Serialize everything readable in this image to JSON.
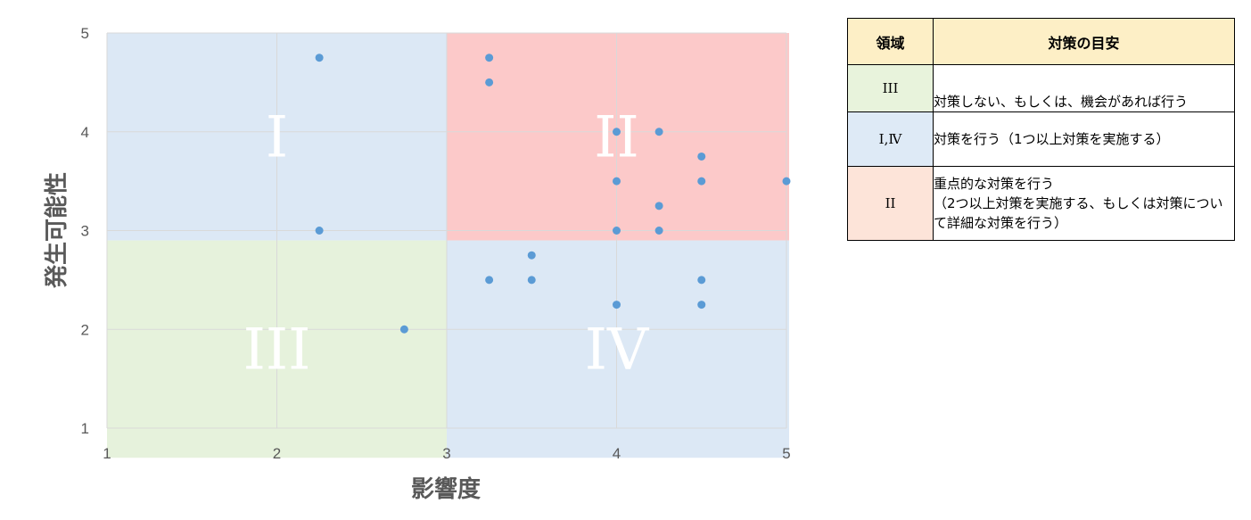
{
  "chart_data": {
    "type": "scatter",
    "xlabel": "影響度",
    "ylabel": "発生可能性",
    "xlim": [
      1,
      5
    ],
    "ylim": [
      1,
      5
    ],
    "xticks": [
      1,
      2,
      3,
      4,
      5
    ],
    "yticks": [
      1,
      2,
      3,
      4,
      5
    ],
    "grid": true,
    "marker_color": "#5b9bd5",
    "regions": [
      {
        "label": "I",
        "x_range": [
          1,
          3
        ],
        "y_range": [
          2.9,
          5
        ],
        "color": "#dce8f5"
      },
      {
        "label": "II",
        "x_range": [
          3,
          5
        ],
        "y_range": [
          2.9,
          5
        ],
        "color": "#fcc9c9"
      },
      {
        "label": "III",
        "x_range": [
          1,
          3
        ],
        "y_range": [
          0.7,
          2.9
        ],
        "color": "#e6f2dc"
      },
      {
        "label": "IV",
        "x_range": [
          3,
          5
        ],
        "y_range": [
          0.7,
          2.9
        ],
        "color": "#dce8f5"
      }
    ],
    "points": [
      [
        2.25,
        4.75
      ],
      [
        2.25,
        3.0
      ],
      [
        2.75,
        2.0
      ],
      [
        3.25,
        4.75
      ],
      [
        3.25,
        4.5
      ],
      [
        3.25,
        2.5
      ],
      [
        3.5,
        2.75
      ],
      [
        3.5,
        2.5
      ],
      [
        4.0,
        4.0
      ],
      [
        4.0,
        3.5
      ],
      [
        4.0,
        3.0
      ],
      [
        4.0,
        2.25
      ],
      [
        4.25,
        4.0
      ],
      [
        4.25,
        3.25
      ],
      [
        4.25,
        3.0
      ],
      [
        4.5,
        3.75
      ],
      [
        4.5,
        3.5
      ],
      [
        4.5,
        2.5
      ],
      [
        4.5,
        2.25
      ],
      [
        5.0,
        3.5
      ]
    ]
  },
  "legend_table": {
    "header": {
      "region": "領域",
      "guideline": "対策の目安"
    },
    "rows": [
      {
        "region": "III",
        "desc": "対策しない、もしくは、機会があれば行う",
        "color": "#e8f3dc"
      },
      {
        "region": "I,Ⅳ",
        "desc": "対策を行う（1つ以上対策を実施する）",
        "color": "#deeaf6"
      },
      {
        "region": "II",
        "desc": "重点的な対策を行う\n（2つ以上対策を実施する、もしくは対策について詳細な対策を行う）",
        "color": "#fde4d9"
      }
    ]
  }
}
